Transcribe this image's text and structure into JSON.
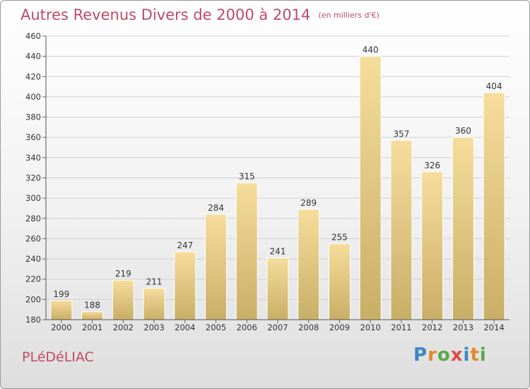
{
  "title": {
    "main": "Autres Revenus Divers de 2000 à 2014",
    "unit": "(en milliers d'€)"
  },
  "town": "PLéDéLIAC",
  "logo": {
    "text": "Proxiti",
    "letters": [
      {
        "ch": "P",
        "color": "#3a86c8"
      },
      {
        "ch": "r",
        "color": "#e08a2a"
      },
      {
        "ch": "o",
        "color": "#5aa84a"
      },
      {
        "ch": "x",
        "color": "#e04a4a"
      },
      {
        "ch": "i",
        "color": "#3a86c8"
      },
      {
        "ch": "t",
        "color": "#e08a2a"
      },
      {
        "ch": "i",
        "color": "#5aa84a"
      }
    ]
  },
  "colors": {
    "accent": "#c04a68",
    "bar_top": "#f6dd9c",
    "bar_bottom": "#c9ae66",
    "grid": "#cfcfcf"
  },
  "chart_data": {
    "type": "bar",
    "title": "Autres Revenus Divers de 2000 à 2014",
    "subtitle": "(en milliers d'€)",
    "xlabel": "",
    "ylabel": "",
    "ylim": [
      180,
      460
    ],
    "yticks": [
      180,
      200,
      220,
      240,
      260,
      280,
      300,
      320,
      340,
      360,
      380,
      400,
      420,
      440,
      460
    ],
    "grid": true,
    "categories": [
      "2000",
      "2001",
      "2002",
      "2003",
      "2004",
      "2005",
      "2006",
      "2007",
      "2008",
      "2009",
      "2010",
      "2011",
      "2012",
      "2013",
      "2014"
    ],
    "values": [
      199,
      188,
      219,
      211,
      247,
      284,
      315,
      241,
      289,
      255,
      440,
      357,
      326,
      360,
      404
    ]
  }
}
